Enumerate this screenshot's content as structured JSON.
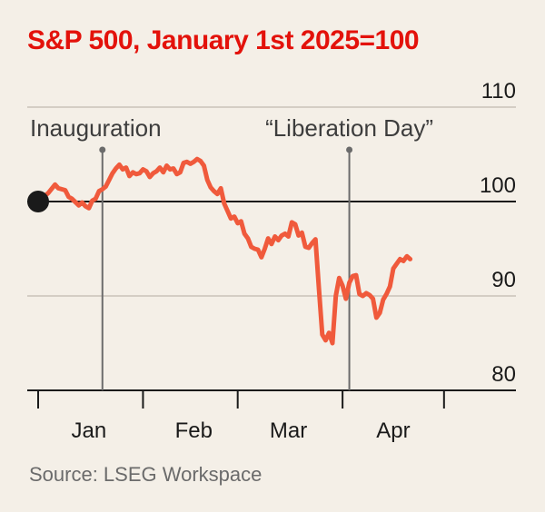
{
  "chart_data": {
    "type": "line",
    "title": "S&P 500, January 1st 2025=100",
    "source": "Source: LSEG Workspace",
    "xlabel": "",
    "ylabel": "",
    "ylim": [
      80,
      110
    ],
    "yticks": [
      80,
      90,
      100,
      110
    ],
    "xlim": [
      0,
      123
    ],
    "month_labels": [
      {
        "label": "Jan",
        "x": 15
      },
      {
        "label": "Feb",
        "x": 46
      },
      {
        "label": "Mar",
        "x": 74
      },
      {
        "label": "Apr",
        "x": 105
      }
    ],
    "month_ticks": [
      0,
      31,
      59,
      90,
      120
    ],
    "baseline": 100,
    "grid": true,
    "line_color": "#f05a3c",
    "annotations": [
      {
        "label": "Inauguration",
        "x": 19,
        "y": 102.2
      },
      {
        "label": "“Liberation Day”",
        "x": 92,
        "y": 95.6
      }
    ],
    "start_marker": {
      "x": 0,
      "y": 100
    },
    "series": [
      {
        "values": [
          [
            0,
            100
          ],
          [
            3,
            100.9
          ],
          [
            5,
            101.8
          ],
          [
            6,
            101.4
          ],
          [
            8,
            101.2
          ],
          [
            9,
            100.5
          ],
          [
            10,
            100.3
          ],
          [
            12,
            99.6
          ],
          [
            13,
            99.9
          ],
          [
            14,
            99.5
          ],
          [
            15,
            99.3
          ],
          [
            16,
            100.1
          ],
          [
            17,
            100.3
          ],
          [
            18,
            101.1
          ],
          [
            19,
            101.3
          ],
          [
            20,
            101.6
          ],
          [
            21,
            102.3
          ],
          [
            22,
            103.0
          ],
          [
            23,
            103.5
          ],
          [
            24,
            103.9
          ],
          [
            25,
            103.4
          ],
          [
            26,
            103.6
          ],
          [
            27,
            102.7
          ],
          [
            28,
            103.1
          ],
          [
            29,
            102.9
          ],
          [
            30,
            103.0
          ],
          [
            31,
            103.4
          ],
          [
            32,
            103.2
          ],
          [
            33,
            102.6
          ],
          [
            34,
            103.0
          ],
          [
            35,
            103.2
          ],
          [
            36,
            103.6
          ],
          [
            37,
            103.1
          ],
          [
            38,
            103.8
          ],
          [
            39,
            103.4
          ],
          [
            40,
            103.5
          ],
          [
            41,
            102.9
          ],
          [
            42,
            103.1
          ],
          [
            43,
            104.1
          ],
          [
            44,
            104.2
          ],
          [
            45,
            104.0
          ],
          [
            46,
            104.2
          ],
          [
            47,
            104.5
          ],
          [
            48,
            104.3
          ],
          [
            49,
            103.8
          ],
          [
            50,
            102.3
          ],
          [
            51,
            101.5
          ],
          [
            52,
            101.1
          ],
          [
            53,
            100.8
          ],
          [
            54,
            101.4
          ],
          [
            55,
            99.8
          ],
          [
            56,
            99.0
          ],
          [
            57,
            98.2
          ],
          [
            58,
            98.4
          ],
          [
            59,
            97.7
          ],
          [
            60,
            97.9
          ],
          [
            61,
            96.6
          ],
          [
            62,
            96.1
          ],
          [
            63,
            95.2
          ],
          [
            64,
            95.0
          ],
          [
            65,
            94.9
          ],
          [
            66,
            94.1
          ],
          [
            67,
            95.0
          ],
          [
            68,
            96.1
          ],
          [
            69,
            95.5
          ],
          [
            70,
            96.3
          ],
          [
            71,
            95.9
          ],
          [
            72,
            96.4
          ],
          [
            73,
            96.6
          ],
          [
            74,
            96.3
          ],
          [
            75,
            97.8
          ],
          [
            76,
            97.6
          ],
          [
            77,
            96.4
          ],
          [
            78,
            96.7
          ],
          [
            79,
            95.2
          ],
          [
            80,
            95.1
          ],
          [
            81,
            95.6
          ],
          [
            82,
            96.0
          ],
          [
            83,
            90.8
          ],
          [
            84,
            85.9
          ],
          [
            85,
            85.3
          ],
          [
            86,
            86.1
          ],
          [
            87,
            85.0
          ],
          [
            88,
            90.0
          ],
          [
            89,
            91.9
          ],
          [
            90,
            91.1
          ],
          [
            91,
            89.7
          ],
          [
            92,
            91.4
          ],
          [
            93,
            92.1
          ],
          [
            94,
            92.2
          ],
          [
            95,
            90.2
          ],
          [
            96,
            90.0
          ],
          [
            97,
            90.3
          ],
          [
            98,
            90.1
          ],
          [
            99,
            89.7
          ],
          [
            100,
            87.7
          ],
          [
            101,
            88.2
          ],
          [
            102,
            89.6
          ],
          [
            103,
            90.2
          ],
          [
            104,
            91.0
          ],
          [
            105,
            92.9
          ],
          [
            106,
            93.4
          ],
          [
            107,
            93.9
          ],
          [
            108,
            93.7
          ],
          [
            109,
            94.2
          ],
          [
            110,
            93.9
          ]
        ]
      }
    ]
  }
}
